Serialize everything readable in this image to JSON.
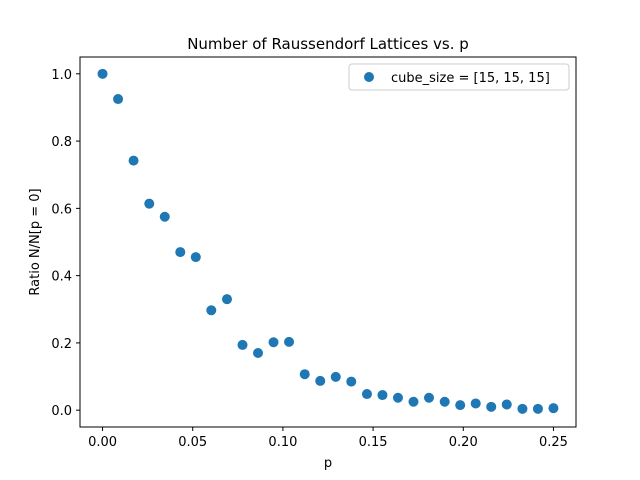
{
  "chart_data": {
    "type": "scatter",
    "title": "Number of Raussendorf Lattices vs. p",
    "xlabel": "p",
    "ylabel": "Ratio N/N[p = 0]",
    "xlim": [
      -0.0125,
      0.2625
    ],
    "ylim": [
      -0.05,
      1.05
    ],
    "xticks": [
      0.0,
      0.05,
      0.1,
      0.15,
      0.2,
      0.25
    ],
    "xtick_labels": [
      "0.00",
      "0.05",
      "0.10",
      "0.15",
      "0.20",
      "0.25"
    ],
    "yticks": [
      0.0,
      0.2,
      0.4,
      0.6,
      0.8,
      1.0
    ],
    "ytick_labels": [
      "0.0",
      "0.2",
      "0.4",
      "0.6",
      "0.8",
      "1.0"
    ],
    "grid": false,
    "legend_position": "top-right",
    "series": [
      {
        "name": "cube_size = [15, 15, 15]",
        "color": "#1f77b4",
        "x": [
          0.0,
          0.0086,
          0.0172,
          0.0259,
          0.0345,
          0.0431,
          0.0517,
          0.0603,
          0.069,
          0.0776,
          0.0862,
          0.0948,
          0.1034,
          0.1121,
          0.1207,
          0.1293,
          0.1379,
          0.1466,
          0.1552,
          0.1638,
          0.1724,
          0.181,
          0.1897,
          0.1983,
          0.2069,
          0.2155,
          0.2241,
          0.2328,
          0.2414,
          0.25
        ],
        "y": [
          1.0,
          0.925,
          0.742,
          0.614,
          0.575,
          0.47,
          0.455,
          0.297,
          0.33,
          0.194,
          0.17,
          0.202,
          0.203,
          0.107,
          0.087,
          0.099,
          0.085,
          0.048,
          0.045,
          0.037,
          0.025,
          0.037,
          0.025,
          0.015,
          0.02,
          0.01,
          0.017,
          0.004,
          0.004,
          0.006
        ]
      }
    ]
  }
}
